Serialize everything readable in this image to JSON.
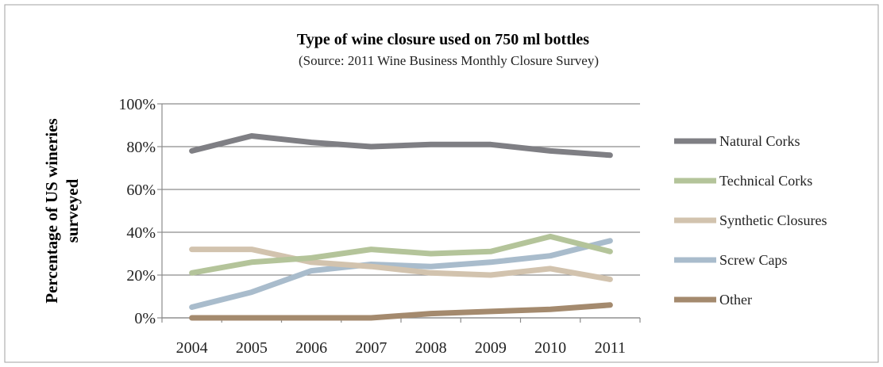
{
  "chart_data": {
    "type": "line",
    "title": "Type of wine closure used on 750 ml bottles",
    "subtitle": "(Source: 2011 Wine Business Monthly Closure Survey)",
    "xlabel": "",
    "ylabel_lines": [
      "Percentage of US wineries",
      "surveyed"
    ],
    "categories": [
      "2004",
      "2005",
      "2006",
      "2007",
      "2008",
      "2009",
      "2010",
      "2011"
    ],
    "ylim": [
      0,
      100
    ],
    "yticks": [
      "0%",
      "20%",
      "40%",
      "60%",
      "80%",
      "100%"
    ],
    "grid": true,
    "legend_position": "right",
    "series": [
      {
        "name": "Natural Corks",
        "color": "#7f7f84",
        "values": [
          78,
          85,
          82,
          80,
          81,
          81,
          78,
          76
        ]
      },
      {
        "name": "Technical Corks",
        "color": "#b4c49a",
        "values": [
          21,
          26,
          28,
          32,
          30,
          31,
          38,
          31
        ]
      },
      {
        "name": "Synthetic Closures",
        "color": "#d2c3ae",
        "values": [
          32,
          32,
          26,
          24,
          21,
          20,
          23,
          18
        ]
      },
      {
        "name": "Screw Caps",
        "color": "#a9bccc",
        "values": [
          5,
          12,
          22,
          25,
          24,
          26,
          29,
          36
        ]
      },
      {
        "name": "Other",
        "color": "#a48a6e",
        "values": [
          0,
          0,
          0,
          0,
          2,
          3,
          4,
          6
        ]
      }
    ]
  }
}
